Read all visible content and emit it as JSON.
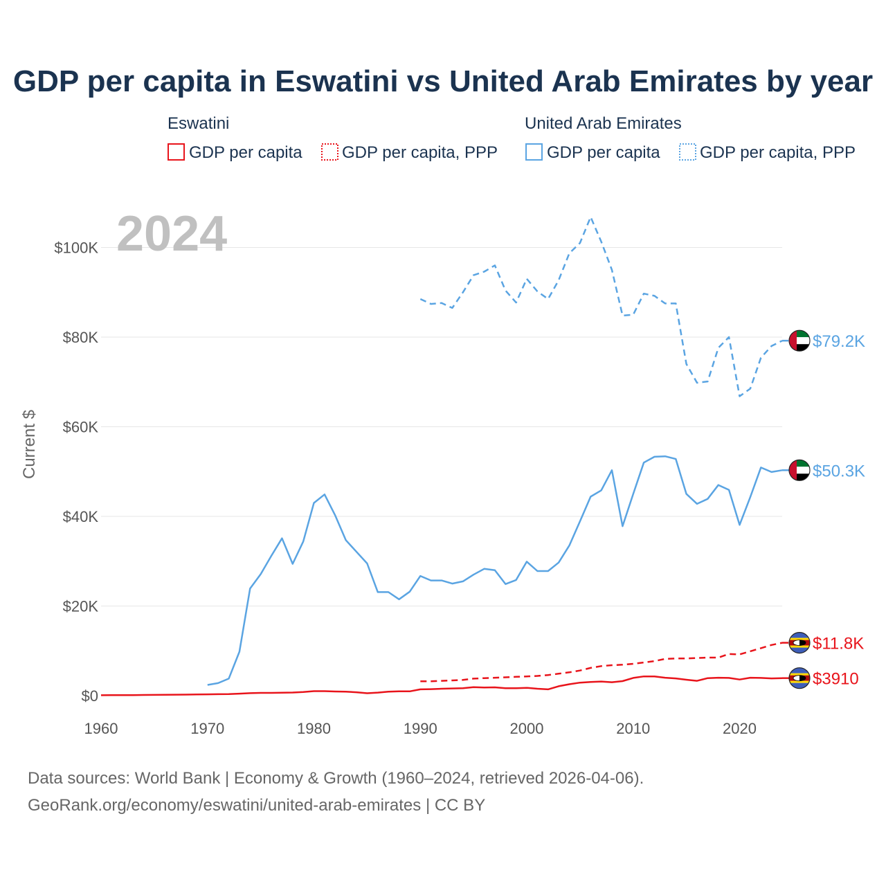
{
  "colors": {
    "eswatini": "#e8141b",
    "uae": "#5aa4e2"
  },
  "chart_data": {
    "type": "line",
    "title": "GDP per capita in Eswatini vs United Arab Emirates by year",
    "year_label": "2024",
    "ylabel": "Current $",
    "xlabel": "",
    "xlim": [
      1960,
      2024
    ],
    "ylim": [
      0,
      110000
    ],
    "x_ticks": [
      1960,
      1970,
      1980,
      1990,
      2000,
      2010,
      2020
    ],
    "x_tick_labels": [
      "1960",
      "1970",
      "1980",
      "1990",
      "2000",
      "2010",
      "2020"
    ],
    "y_ticks": [
      0,
      20000,
      40000,
      60000,
      80000,
      100000
    ],
    "y_tick_labels": [
      "$0",
      "$20K",
      "$40K",
      "$60K",
      "$80K",
      "$100K"
    ],
    "grid": true,
    "legend": {
      "groups": [
        {
          "name": "Eswatini",
          "items": [
            "GDP per capita",
            "GDP per capita, PPP"
          ]
        },
        {
          "name": "United Arab Emirates",
          "items": [
            "GDP per capita",
            "GDP per capita, PPP"
          ]
        }
      ]
    },
    "series": [
      {
        "name": "Eswatini GDP per capita",
        "country": "eswatini",
        "style": "solid",
        "end_label": "$3910",
        "x": [
          1960,
          1961,
          1962,
          1963,
          1964,
          1965,
          1966,
          1967,
          1968,
          1969,
          1970,
          1971,
          1972,
          1973,
          1974,
          1975,
          1976,
          1977,
          1978,
          1979,
          1980,
          1981,
          1982,
          1983,
          1984,
          1985,
          1986,
          1987,
          1988,
          1989,
          1990,
          1991,
          1992,
          1993,
          1994,
          1995,
          1996,
          1997,
          1998,
          1999,
          2000,
          2001,
          2002,
          2003,
          2004,
          2005,
          2006,
          2007,
          2008,
          2009,
          2010,
          2011,
          2012,
          2013,
          2014,
          2015,
          2016,
          2017,
          2018,
          2019,
          2020,
          2021,
          2022,
          2023,
          2024
        ],
        "y": [
          100,
          110,
          120,
          130,
          150,
          170,
          190,
          210,
          230,
          260,
          290,
          320,
          360,
          450,
          560,
          620,
          620,
          660,
          700,
          820,
          1000,
          1000,
          920,
          900,
          760,
          540,
          680,
          880,
          980,
          960,
          1400,
          1450,
          1550,
          1600,
          1650,
          1880,
          1800,
          1850,
          1650,
          1650,
          1750,
          1550,
          1400,
          2100,
          2550,
          2900,
          3050,
          3150,
          3000,
          3250,
          3950,
          4300,
          4300,
          4000,
          3850,
          3550,
          3300,
          3900,
          4000,
          3950,
          3600,
          4000,
          3950,
          3850,
          3910
        ]
      },
      {
        "name": "Eswatini GDP per capita, PPP",
        "country": "eswatini",
        "style": "dashed",
        "end_label": "$11.8K",
        "x": [
          1990,
          1991,
          1992,
          1993,
          1994,
          1995,
          1996,
          1997,
          1998,
          1999,
          2000,
          2001,
          2002,
          2003,
          2004,
          2005,
          2006,
          2007,
          2008,
          2009,
          2010,
          2011,
          2012,
          2013,
          2014,
          2015,
          2016,
          2017,
          2018,
          2019,
          2020,
          2021,
          2022,
          2023,
          2024
        ],
        "y": [
          3200,
          3200,
          3300,
          3400,
          3500,
          3800,
          3900,
          4000,
          4100,
          4200,
          4300,
          4400,
          4600,
          4900,
          5200,
          5600,
          6200,
          6600,
          6800,
          6900,
          7100,
          7400,
          7700,
          8200,
          8300,
          8300,
          8400,
          8500,
          8500,
          9300,
          9200,
          9900,
          10600,
          11300,
          11800
        ]
      },
      {
        "name": "United Arab Emirates GDP per capita",
        "country": "uae",
        "style": "solid",
        "end_label": "$50.3K",
        "x": [
          1970,
          1971,
          1972,
          1973,
          1974,
          1975,
          1976,
          1977,
          1978,
          1979,
          1980,
          1981,
          1982,
          1983,
          1984,
          1985,
          1986,
          1987,
          1988,
          1989,
          1990,
          1991,
          1992,
          1993,
          1994,
          1995,
          1996,
          1997,
          1998,
          1999,
          2000,
          2001,
          2002,
          2003,
          2004,
          2005,
          2006,
          2007,
          2008,
          2009,
          2010,
          2011,
          2012,
          2013,
          2014,
          2015,
          2016,
          2017,
          2018,
          2019,
          2020,
          2021,
          2022,
          2023,
          2024
        ],
        "y": [
          2400,
          2800,
          3800,
          9800,
          23900,
          27100,
          31200,
          35100,
          29400,
          34400,
          43000,
          44900,
          40200,
          34700,
          32100,
          29500,
          23100,
          23100,
          21500,
          23200,
          26700,
          25700,
          25700,
          25000,
          25500,
          27000,
          28300,
          28000,
          24900,
          25800,
          29900,
          27800,
          27800,
          29700,
          33500,
          38900,
          44400,
          45800,
          50300,
          37800,
          45000,
          52000,
          53300,
          53400,
          52800,
          45000,
          42800,
          43900,
          47000,
          45900,
          38100,
          44300,
          50900,
          49900,
          50300
        ]
      },
      {
        "name": "United Arab Emirates GDP per capita, PPP",
        "country": "uae",
        "style": "dashed",
        "end_label": "$79.2K",
        "x": [
          1990,
          1991,
          1992,
          1993,
          1994,
          1995,
          1996,
          1997,
          1998,
          1999,
          2000,
          2001,
          2002,
          2003,
          2004,
          2005,
          2006,
          2007,
          2008,
          2009,
          2010,
          2011,
          2012,
          2013,
          2014,
          2015,
          2016,
          2017,
          2018,
          2019,
          2020,
          2021,
          2022,
          2023,
          2024
        ],
        "y": [
          88500,
          87400,
          87600,
          86500,
          90000,
          93800,
          94600,
          96000,
          90400,
          87700,
          93000,
          90200,
          88500,
          92700,
          98700,
          101000,
          106800,
          101300,
          95000,
          84800,
          85000,
          89700,
          89200,
          87500,
          87500,
          74000,
          69800,
          70100,
          77600,
          80000,
          66800,
          68500,
          75400,
          78000,
          79200
        ]
      }
    ],
    "source_lines": [
      "Data sources: World Bank | Economy & Growth (1960–2024, retrieved 2026-04-06).",
      "GeoRank.org/economy/eswatini/united-arab-emirates | CC BY"
    ]
  }
}
